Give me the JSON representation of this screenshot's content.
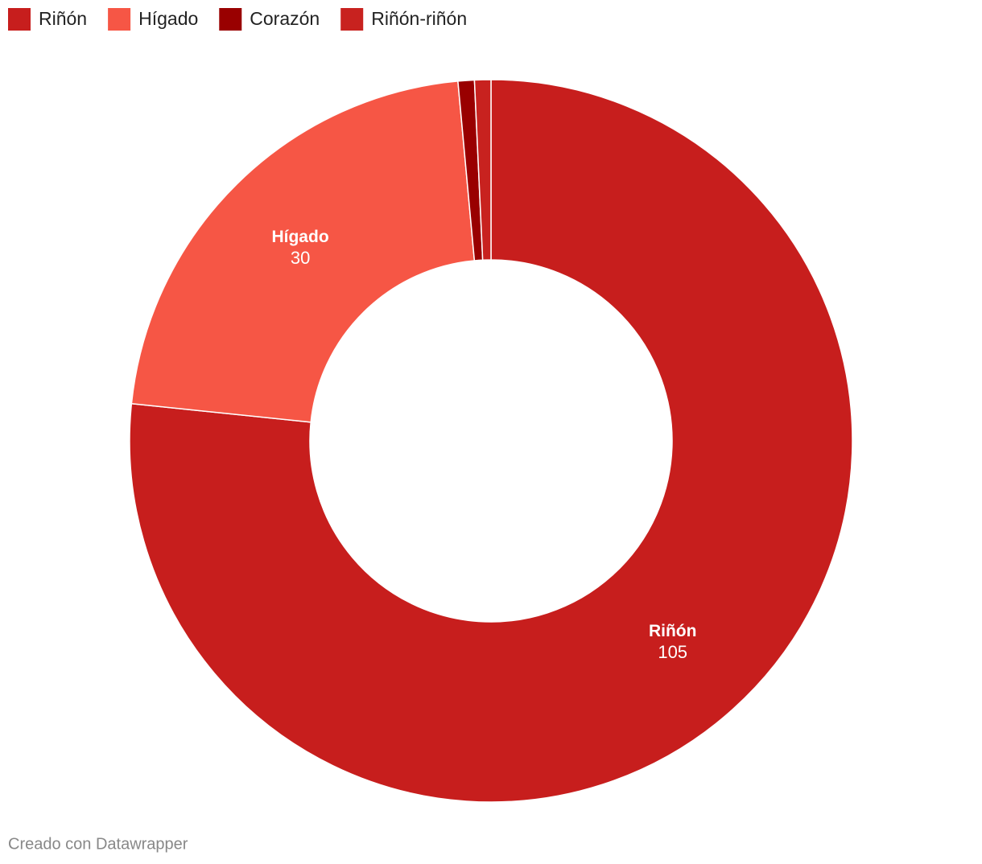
{
  "chart_data": {
    "type": "pie",
    "categories": [
      "Riñón",
      "Hígado",
      "Corazón",
      "Riñón-riñón"
    ],
    "values": [
      105,
      30,
      1,
      1
    ],
    "colors": [
      "#c71e1d",
      "#f65645",
      "#990000",
      "#c8221f"
    ],
    "labeled": [
      true,
      true,
      false,
      false
    ],
    "legend": "top-left",
    "footer": "Creado con Datawrapper"
  }
}
